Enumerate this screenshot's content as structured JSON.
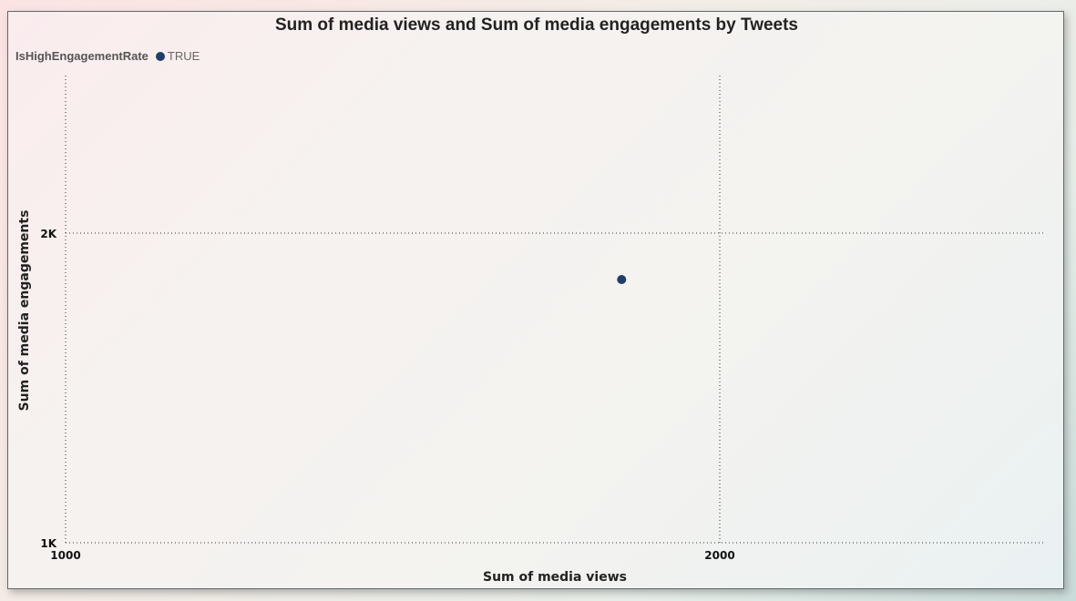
{
  "chart_data": {
    "type": "scatter",
    "title": "Sum of media views and Sum of media engagements by Tweets",
    "xlabel": "Sum of media views",
    "ylabel": "Sum of media engagements",
    "xlim": [
      1000,
      2500
    ],
    "ylim": [
      1000,
      2500
    ],
    "x_ticks": [
      1000,
      2000
    ],
    "x_tick_labels": [
      "1000",
      "2000"
    ],
    "y_ticks": [
      1000,
      2000
    ],
    "y_tick_labels": [
      "1K",
      "2K"
    ],
    "grid": true,
    "legend": {
      "title": "IsHighEngagementRate",
      "placement": "top-left",
      "entries": [
        {
          "label": "TRUE",
          "color": "#1f3f66"
        }
      ]
    },
    "series": [
      {
        "name": "TRUE",
        "color": "#1f3f66",
        "points": [
          {
            "x": 1850,
            "y": 1850
          }
        ]
      }
    ]
  }
}
